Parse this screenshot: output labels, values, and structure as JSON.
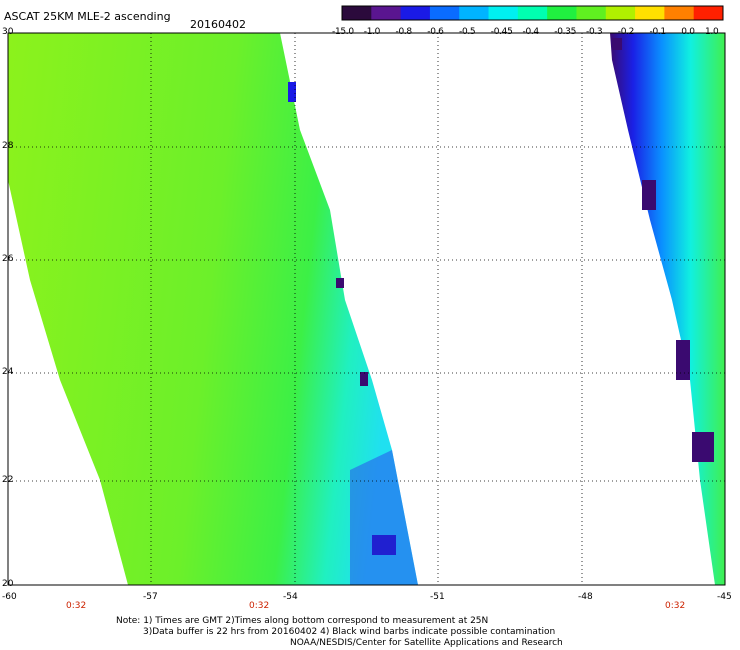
{
  "header": {
    "title": "ASCAT 25KM MLE-2 ascending",
    "date": "20160402"
  },
  "colorbar": {
    "labels": [
      "-15.0",
      "-1.0",
      "-0.8",
      "-0.6",
      "-0.5",
      "-0.45",
      "-0.4",
      "-0.35",
      "-0.3",
      "-0.2",
      "-0.1",
      "0.0",
      "1.0"
    ],
    "colors": [
      "#2b0a3c",
      "#5a1590",
      "#1a1ae6",
      "#0a6cff",
      "#00b4ff",
      "#00f0f0",
      "#00ffb0",
      "#20f040",
      "#60f020",
      "#b0f000",
      "#ffe000",
      "#ff8000",
      "#ff2000"
    ]
  },
  "axes": {
    "lat_labels": [
      "30",
      "28",
      "26",
      "24",
      "22",
      "20"
    ],
    "lon_labels": [
      "-60",
      "-57",
      "-54",
      "-51",
      "-48",
      "-45"
    ],
    "time_labels": [
      "0:32",
      "0:32",
      "0:32"
    ]
  },
  "notes": [
    "Note: 1) Times are GMT 2)Times along bottom correspond to measurement at 25N",
    "3)Data buffer is 22 hrs from 20160402 4) Black wind barbs indicate possible contamination",
    "NOAA/NESDIS/Center for Satellite Applications and Research"
  ]
}
